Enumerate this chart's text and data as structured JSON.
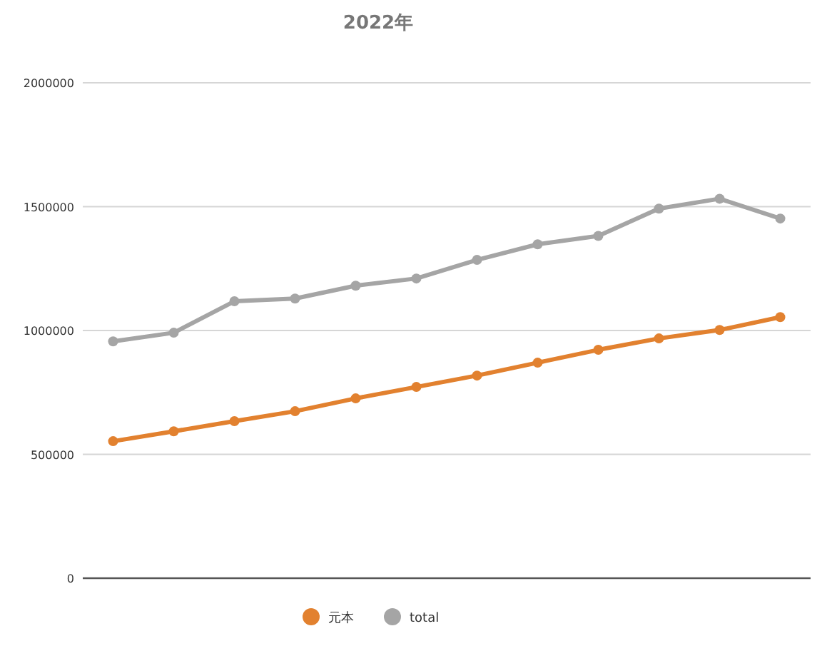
{
  "chart_data": {
    "type": "line",
    "title": "2022年",
    "categories": [
      null,
      null,
      null,
      null,
      null,
      null,
      null,
      null,
      null,
      null,
      null,
      null
    ],
    "series": [
      {
        "name": "元本",
        "color": "#e2812f",
        "values": [
          553000,
          593000,
          634000,
          674000,
          726000,
          772000,
          818000,
          870000,
          922000,
          968000,
          1002000,
          1054000
        ]
      },
      {
        "name": "total",
        "color": "#a5a5a5",
        "values": [
          956000,
          991000,
          1118000,
          1129000,
          1181000,
          1210000,
          1285000,
          1348000,
          1382000,
          1492000,
          1532000,
          1452000
        ]
      }
    ],
    "ylim": [
      0,
      2000000
    ],
    "yticks": [
      0,
      500000,
      1000000,
      1500000,
      2000000
    ],
    "grid": "y",
    "legend": "bottom",
    "marker": "circle",
    "line_style": "solid"
  }
}
